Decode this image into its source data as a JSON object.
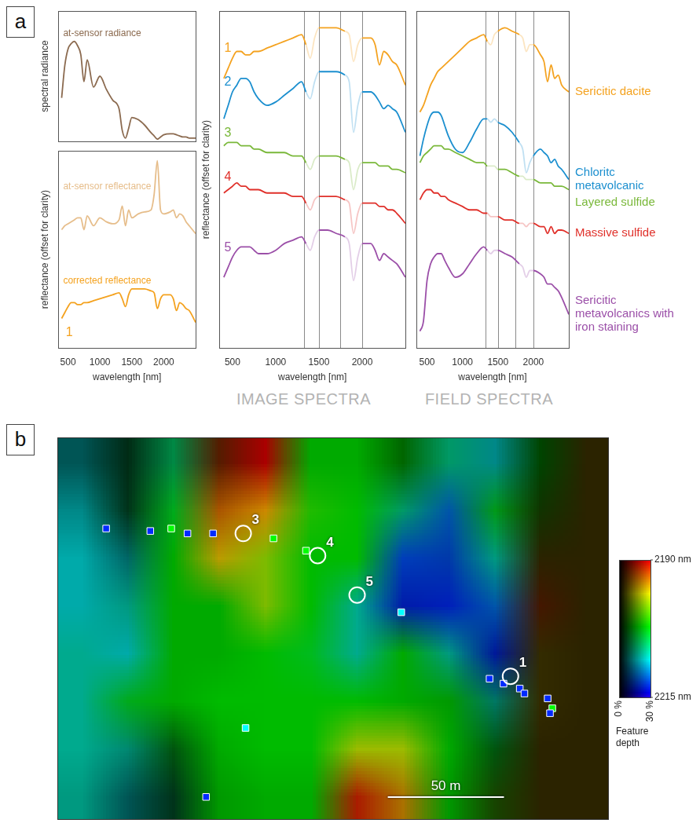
{
  "figure": {
    "panel_letters": [
      "a",
      "b"
    ],
    "captions": [
      "IMAGE SPECTRA",
      "FIELD SPECTRA"
    ]
  },
  "chart_data": [
    {
      "type": "line",
      "y_label": "spectral radiance",
      "tick_labels": false,
      "xlim": [
        350,
        2500
      ],
      "ylim": [
        0,
        120
      ],
      "x": [
        400,
        450,
        500,
        550,
        600,
        650,
        700,
        750,
        800,
        900,
        1000,
        1100,
        1200,
        1300,
        1350,
        1400,
        1450,
        1500,
        1600,
        1700,
        1800,
        1850,
        1900,
        1950,
        2000,
        2100,
        2150,
        2200,
        2250,
        2300,
        2350,
        2400,
        2500
      ],
      "series": [
        {
          "name": "at-sensor radiance",
          "color": "#8b6a4f",
          "values": [
            40,
            70,
            85,
            90,
            92,
            88,
            80,
            55,
            75,
            50,
            60,
            48,
            38,
            30,
            10,
            3,
            12,
            22,
            20,
            15,
            8,
            5,
            2,
            4,
            6,
            7,
            7,
            6,
            5,
            4,
            4,
            3,
            3
          ]
        }
      ]
    },
    {
      "type": "line",
      "x_label": "wavelength [nm]",
      "y_label": "reflectance (offset for clarity)",
      "tick_labels": "x",
      "xlim": [
        350,
        2500
      ],
      "xticks": [
        500,
        1000,
        1500,
        2000
      ],
      "ylim": [
        0,
        100
      ],
      "x": [
        400,
        450,
        500,
        550,
        600,
        650,
        700,
        750,
        800,
        900,
        1000,
        1100,
        1200,
        1300,
        1350,
        1400,
        1450,
        1500,
        1600,
        1700,
        1800,
        1850,
        1900,
        1950,
        2000,
        2100,
        2150,
        2200,
        2250,
        2300,
        2350,
        2400,
        2500
      ],
      "series": [
        {
          "name": "at-sensor reflectance",
          "color": "#e6bd8a",
          "values": [
            60,
            62,
            63,
            64,
            65,
            66,
            66,
            60,
            67,
            62,
            66,
            64,
            63,
            65,
            72,
            62,
            70,
            66,
            68,
            69,
            70,
            78,
            95,
            70,
            68,
            69,
            70,
            66,
            68,
            67,
            64,
            62,
            58
          ]
        },
        {
          "name": "corrected reflectance",
          "color": "#f4a21f",
          "values": [
            15,
            18,
            21,
            23,
            23,
            22,
            22,
            23,
            23,
            24,
            25,
            26,
            27,
            28,
            25,
            21,
            27,
            30,
            30,
            30,
            29,
            28,
            20,
            25,
            27,
            27,
            25,
            19,
            23,
            22,
            20,
            19,
            13
          ]
        }
      ],
      "annotations": [
        {
          "text": "1",
          "x": 520,
          "y": 8,
          "color": "#f4a21f"
        }
      ]
    },
    {
      "type": "line",
      "x_label": "wavelength [nm]",
      "y_label": "reflectance (offset for clarity)",
      "tick_labels": "x",
      "xlim": [
        350,
        2500
      ],
      "xticks": [
        500,
        1000,
        1500,
        2000
      ],
      "ylim": [
        0,
        100
      ],
      "band_lines": [
        1330,
        1500,
        1750,
        2000
      ],
      "x": [
        400,
        450,
        500,
        550,
        600,
        650,
        700,
        750,
        800,
        900,
        1000,
        1100,
        1200,
        1300,
        1350,
        1400,
        1450,
        1500,
        1600,
        1700,
        1800,
        1850,
        1900,
        1950,
        2000,
        2100,
        2150,
        2200,
        2250,
        2300,
        2350,
        2400,
        2500
      ],
      "series": [
        {
          "name": "1",
          "color": "#f4a21f",
          "values": [
            80,
            83,
            86,
            88,
            88,
            87,
            87,
            88,
            88,
            89,
            90,
            91,
            92,
            93,
            90,
            86,
            92,
            95,
            95,
            95,
            94,
            93,
            85,
            90,
            92,
            92,
            90,
            84,
            88,
            87,
            85,
            84,
            78
          ]
        },
        {
          "name": "2",
          "color": "#1b8fcf",
          "values": [
            68,
            72,
            76,
            78,
            80,
            80,
            79,
            76,
            74,
            72,
            73,
            75,
            77,
            79,
            76,
            74,
            79,
            82,
            82,
            82,
            81,
            79,
            64,
            72,
            76,
            76,
            75,
            73,
            71,
            72,
            71,
            70,
            64
          ]
        },
        {
          "name": "3",
          "color": "#7ab83a",
          "values": [
            60,
            61,
            61,
            61,
            60,
            60,
            60,
            59,
            59,
            58,
            58,
            58,
            57,
            57,
            55,
            53,
            56,
            57,
            57,
            57,
            56,
            55,
            47,
            53,
            55,
            55,
            55,
            54,
            54,
            54,
            53,
            53,
            52
          ]
        },
        {
          "name": "4",
          "color": "#e0302a",
          "values": [
            46,
            47,
            48,
            49,
            48,
            48,
            47,
            47,
            47,
            46,
            46,
            46,
            45,
            45,
            43,
            41,
            44,
            45,
            45,
            45,
            44,
            43,
            34,
            40,
            43,
            43,
            43,
            42,
            42,
            41,
            41,
            40,
            37
          ]
        },
        {
          "name": "5",
          "color": "#9b4fa8",
          "values": [
            21,
            24,
            27,
            29,
            30,
            30,
            30,
            29,
            28,
            28,
            29,
            31,
            32,
            33,
            31,
            29,
            33,
            35,
            35,
            34,
            33,
            31,
            20,
            27,
            31,
            31,
            29,
            26,
            28,
            27,
            26,
            25,
            21
          ]
        }
      ]
    },
    {
      "type": "line",
      "x_label": "wavelength [nm]",
      "tick_labels": "x",
      "legend": "right",
      "xlim": [
        350,
        2500
      ],
      "xticks": [
        500,
        1000,
        1500,
        2000
      ],
      "ylim": [
        0,
        100
      ],
      "band_lines": [
        1330,
        1500,
        1750,
        2000
      ],
      "x": [
        400,
        450,
        500,
        550,
        600,
        650,
        700,
        750,
        800,
        900,
        1000,
        1100,
        1200,
        1300,
        1350,
        1400,
        1450,
        1500,
        1600,
        1700,
        1800,
        1850,
        1900,
        1950,
        2000,
        2100,
        2150,
        2200,
        2250,
        2300,
        2350,
        2400,
        2500
      ],
      "series": [
        {
          "name": "Sericitic dacite",
          "color": "#f4a21f",
          "values": [
            70,
            72,
            75,
            78,
            80,
            82,
            83,
            84,
            85,
            87,
            89,
            91,
            92,
            93,
            91,
            90,
            93,
            94,
            95,
            94,
            93,
            92,
            88,
            90,
            90,
            87,
            85,
            79,
            84,
            80,
            81,
            78,
            76
          ]
        },
        {
          "name": "Chloritc metavolcanic",
          "color": "#1b8fcf",
          "values": [
            57,
            62,
            66,
            69,
            70,
            70,
            69,
            66,
            63,
            59,
            58,
            61,
            65,
            68,
            68,
            67,
            68,
            67,
            66,
            64,
            61,
            59,
            52,
            55,
            57,
            59,
            58,
            57,
            55,
            56,
            54,
            53,
            50
          ]
        },
        {
          "name": "Layered sulfide",
          "color": "#7ab83a",
          "values": [
            55,
            57,
            58,
            59,
            60,
            60,
            60,
            59,
            59,
            58,
            57,
            56,
            55,
            55,
            54,
            54,
            54,
            53,
            53,
            52,
            51,
            51,
            50,
            50,
            50,
            49,
            49,
            49,
            49,
            48,
            48,
            48,
            47
          ]
        },
        {
          "name": "Massive sulfide",
          "color": "#e0302a",
          "values": [
            44,
            46,
            47,
            47,
            46,
            46,
            45,
            45,
            44,
            43,
            42,
            41,
            41,
            40,
            40,
            39,
            39,
            39,
            38,
            38,
            37,
            37,
            36,
            37,
            37,
            36,
            36,
            34,
            36,
            34,
            35,
            35,
            34
          ]
        },
        {
          "name": "Sericitic metavolcanics with iron staining",
          "color": "#9b4fa8",
          "values": [
            5,
            8,
            20,
            25,
            27,
            28,
            28,
            26,
            24,
            21,
            22,
            25,
            28,
            30,
            29,
            28,
            29,
            29,
            28,
            27,
            25,
            24,
            21,
            23,
            23,
            22,
            21,
            19,
            19,
            18,
            17,
            15,
            10
          ]
        }
      ]
    },
    {
      "type": "scatter",
      "tick_labels": false,
      "xlim": [
        0,
        237
      ],
      "ylim": [
        0,
        155
      ],
      "cells": {
        "wavelength": [
          [
            2208,
            2205,
            2205,
            2192,
            2190,
            2202,
            2202,
            2202,
            2206,
            2208,
            2202,
            2195
          ],
          [
            2208,
            2205,
            2203,
            2193,
            2194,
            2201,
            2202,
            2206,
            2211,
            2203,
            2200,
            2195
          ],
          [
            2208,
            2208,
            2202,
            2195,
            2198,
            2202,
            2202,
            2212,
            2212,
            2207,
            2195,
            2195
          ],
          [
            2208,
            2207,
            2202,
            2202,
            2198,
            2202,
            2207,
            2213,
            2213,
            2211,
            2192,
            2195
          ],
          [
            2207,
            2208,
            2202,
            2202,
            2202,
            2203,
            2207,
            2202,
            2207,
            2213,
            2195,
            2195
          ],
          [
            2207,
            2203,
            2202,
            2202,
            2202,
            2202,
            2202,
            2202,
            2202,
            2207,
            2195,
            2195
          ],
          [
            2207,
            2207,
            2203,
            2202,
            2202,
            2202,
            2197,
            2197,
            2202,
            2203,
            2195,
            2195
          ],
          [
            2207,
            2208,
            2205,
            2202,
            2202,
            2202,
            2191,
            2194,
            2202,
            2200,
            2195,
            2195
          ]
        ],
        "depth": [
          [
            10,
            5,
            16,
            10,
            20,
            20,
            20,
            12,
            18,
            16,
            8,
            5
          ],
          [
            16,
            6,
            20,
            20,
            24,
            22,
            22,
            18,
            20,
            18,
            6,
            5
          ],
          [
            20,
            12,
            20,
            22,
            22,
            22,
            22,
            22,
            20,
            18,
            5,
            5
          ],
          [
            20,
            18,
            20,
            20,
            22,
            22,
            20,
            20,
            22,
            20,
            8,
            5
          ],
          [
            20,
            20,
            20,
            20,
            22,
            22,
            20,
            20,
            18,
            18,
            6,
            5
          ],
          [
            20,
            20,
            20,
            22,
            22,
            22,
            22,
            20,
            18,
            14,
            6,
            5
          ],
          [
            20,
            16,
            10,
            20,
            22,
            22,
            22,
            22,
            20,
            10,
            5,
            5
          ],
          [
            18,
            10,
            6,
            18,
            20,
            20,
            20,
            20,
            18,
            8,
            5,
            5
          ]
        ]
      },
      "sites": {
        "marker": "circle",
        "labels": [
          "1",
          "3",
          "4",
          "5"
        ],
        "x": [
          195,
          80,
          112,
          129
        ],
        "y": [
          58,
          116,
          107,
          91
        ]
      },
      "samples": {
        "marker": "square",
        "x": [
          21,
          40,
          49,
          56,
          67,
          93,
          107,
          148,
          186,
          192,
          199,
          201,
          211,
          213,
          212,
          81,
          64
        ],
        "y": [
          118,
          117,
          118,
          116,
          116,
          114,
          109,
          84,
          57,
          55,
          53,
          51,
          49,
          45,
          43,
          37,
          9
        ],
        "wavelength": [
          2213,
          2213,
          2202,
          2213,
          2213,
          2202,
          2202,
          2208,
          2213,
          2213,
          2213,
          2213,
          2213,
          2202,
          2213,
          2208,
          2213
        ]
      },
      "scale_bar": {
        "length": 50,
        "label": "50 m"
      },
      "colorbar": {
        "title": "Feature depth",
        "wavelength_range": [
          2190,
          2215
        ],
        "wavelength_ticks": [
          {
            "value": 2190,
            "label": "2190 nm"
          },
          {
            "value": 2215,
            "label": "2215 nm"
          }
        ],
        "depth_range": [
          0,
          30
        ],
        "depth_ticks": [
          {
            "value": 0,
            "label": "0 %"
          },
          {
            "value": 30,
            "label": "30 %"
          }
        ]
      }
    }
  ]
}
